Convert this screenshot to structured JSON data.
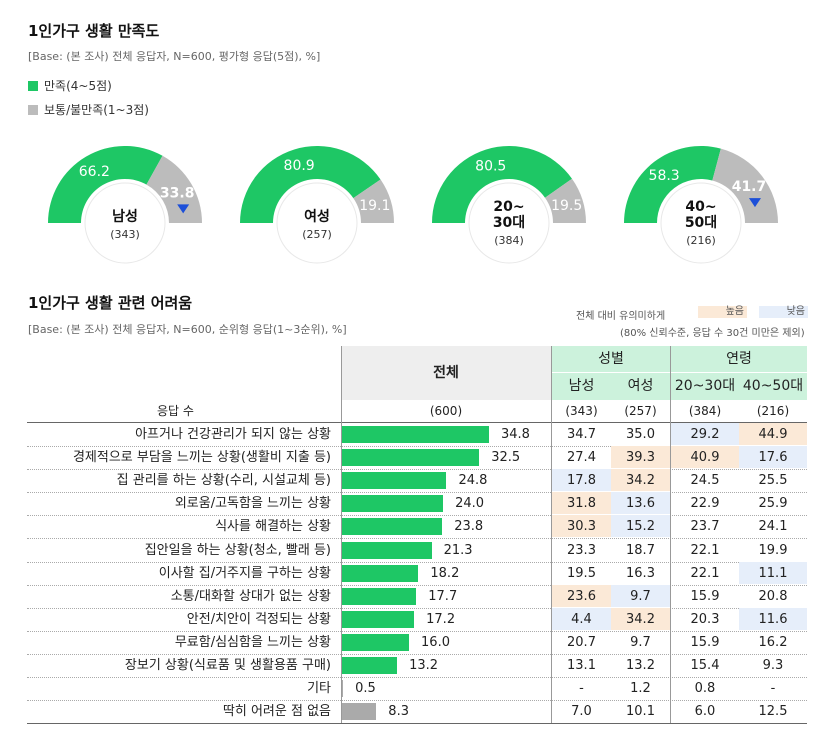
{
  "section1": {
    "title": "1인가구 생활 만족도",
    "base": "[Base: (본 조사) 전체 응답자, N=600, 평가형 응답(5점), %]",
    "legend": [
      {
        "label": "만족(4~5점)",
        "color": "#1ec765"
      },
      {
        "label": "보통/불만족(1~3점)",
        "color": "#bcbcbc"
      }
    ]
  },
  "section2": {
    "title": "1인가구 생활 관련 어려움",
    "base": "[Base: (본 조사) 전체 응답자, N=600, 순위형 응답(1~3순위), %]",
    "note_line1": "전체 대비 유의미하게",
    "note_high": "높음",
    "note_low": "낮음",
    "note_line2": "(80% 신뢰수준, 응답 수 30건 미만은 제외)",
    "high_color": "#fbe9d7",
    "low_color": "#e6eefa",
    "header_total": "전체",
    "header_gender": "성별",
    "header_age": "연령",
    "sub_male": "남성",
    "sub_female": "여성",
    "sub_age1": "20~30대",
    "sub_age2": "40~50대",
    "n_label": "응답 수",
    "n_values": [
      "(600)",
      "(343)",
      "(257)",
      "(384)",
      "(216)"
    ]
  },
  "chart_data": [
    {
      "type": "pie",
      "title": "1인가구 생활 만족도",
      "series_names": [
        "만족(4~5점)",
        "보통/불만족(1~3점)"
      ],
      "gauges": [
        {
          "label_lines": [
            "남성"
          ],
          "n": "(343)",
          "satisfied": 66.2,
          "other": 33.8,
          "arrow": "down"
        },
        {
          "label_lines": [
            "여성"
          ],
          "n": "(257)",
          "satisfied": 80.9,
          "other": 19.1,
          "arrow": ""
        },
        {
          "label_lines": [
            "20~",
            "30대"
          ],
          "n": "(384)",
          "satisfied": 80.5,
          "other": 19.5,
          "arrow": ""
        },
        {
          "label_lines": [
            "40~",
            "50대"
          ],
          "n": "(216)",
          "satisfied": 58.3,
          "other": 41.7,
          "arrow": "down"
        }
      ]
    },
    {
      "type": "bar",
      "title": "1인가구 생활 관련 어려움",
      "xlim": [
        0,
        40
      ],
      "rows": [
        {
          "label": "아프거나 건강관리가 되지 않는 상황",
          "total": 34.8,
          "male": "34.7",
          "female": "35.0",
          "age1": "29.2",
          "age2": "44.9",
          "hl": [
            "",
            "",
            "low",
            "high"
          ],
          "gray": false
        },
        {
          "label": "경제적으로 부담을 느끼는 상황(생활비 지출 등)",
          "total": 32.5,
          "male": "27.4",
          "female": "39.3",
          "age1": "40.9",
          "age2": "17.6",
          "hl": [
            "",
            "high",
            "high",
            "low"
          ],
          "gray": false
        },
        {
          "label": "집 관리를 하는 상황(수리, 시설교체 등)",
          "total": 24.8,
          "male": "17.8",
          "female": "34.2",
          "age1": "24.5",
          "age2": "25.5",
          "hl": [
            "low",
            "high",
            "",
            ""
          ],
          "gray": false
        },
        {
          "label": "외로움/고독함을 느끼는 상황",
          "total": 24.0,
          "male": "31.8",
          "female": "13.6",
          "age1": "22.9",
          "age2": "25.9",
          "hl": [
            "high",
            "low",
            "",
            ""
          ],
          "gray": false
        },
        {
          "label": "식사를 해결하는 상황",
          "total": 23.8,
          "male": "30.3",
          "female": "15.2",
          "age1": "23.7",
          "age2": "24.1",
          "hl": [
            "high",
            "low",
            "",
            ""
          ],
          "gray": false
        },
        {
          "label": "집안일을 하는 상황(청소, 빨래 등)",
          "total": 21.3,
          "male": "23.3",
          "female": "18.7",
          "age1": "22.1",
          "age2": "19.9",
          "hl": [
            "",
            "",
            "",
            ""
          ],
          "gray": false
        },
        {
          "label": "이사할 집/거주지를 구하는 상황",
          "total": 18.2,
          "male": "19.5",
          "female": "16.3",
          "age1": "22.1",
          "age2": "11.1",
          "hl": [
            "",
            "",
            "",
            "low"
          ],
          "gray": false
        },
        {
          "label": "소통/대화할 상대가 없는 상황",
          "total": 17.7,
          "male": "23.6",
          "female": "9.7",
          "age1": "15.9",
          "age2": "20.8",
          "hl": [
            "high",
            "low",
            "",
            ""
          ],
          "gray": false
        },
        {
          "label": "안전/치안이 걱정되는 상황",
          "total": 17.2,
          "male": "4.4",
          "female": "34.2",
          "age1": "20.3",
          "age2": "11.6",
          "hl": [
            "low",
            "high",
            "",
            "low"
          ],
          "gray": false
        },
        {
          "label": "무료함/심심함을 느끼는 상황",
          "total": 16.0,
          "male": "20.7",
          "female": "9.7",
          "age1": "15.9",
          "age2": "16.2",
          "hl": [
            "",
            "",
            "",
            ""
          ],
          "gray": false
        },
        {
          "label": "장보기 상황(식료품 및 생활용품 구매)",
          "total": 13.2,
          "male": "13.1",
          "female": "13.2",
          "age1": "15.4",
          "age2": "9.3",
          "hl": [
            "",
            "",
            "",
            ""
          ],
          "gray": false
        },
        {
          "label": "기타",
          "total": 0.5,
          "male": "-",
          "female": "1.2",
          "age1": "0.8",
          "age2": "-",
          "hl": [
            "",
            "",
            "",
            ""
          ],
          "gray": true
        },
        {
          "label": "딱히 어려운 점 없음",
          "total": 8.3,
          "male": "7.0",
          "female": "10.1",
          "age1": "6.0",
          "age2": "12.5",
          "hl": [
            "",
            "",
            "",
            ""
          ],
          "gray": true
        }
      ],
      "bar_color": "#1ec765",
      "gray_color": "#aaaaaa"
    }
  ]
}
